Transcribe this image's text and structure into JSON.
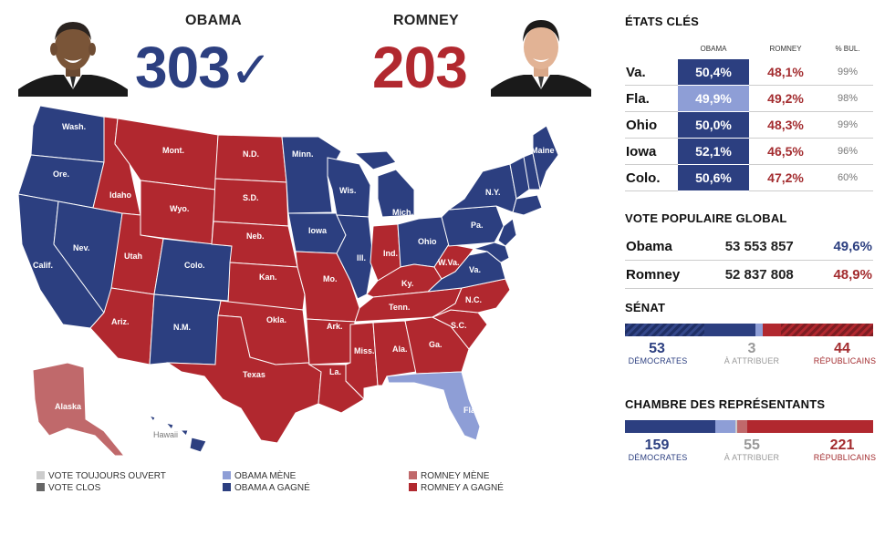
{
  "header": {
    "obama": {
      "name": "OBAMA",
      "votes": "303",
      "check": "✓",
      "color": "#2c3f80"
    },
    "romney": {
      "name": "ROMNEY",
      "votes": "203",
      "color": "#b1282f"
    }
  },
  "map": {
    "colors": {
      "obama_won": "#2c3f80",
      "obama_leads": "#8e9ed6",
      "romney_won": "#b1282f",
      "romney_leads": "#c0696b",
      "open": "#cccccc",
      "closed": "#666666"
    },
    "labels": [
      "Wash.",
      "Ore.",
      "Calif.",
      "Nev.",
      "Idaho",
      "Mont.",
      "Wyo.",
      "Utah",
      "Ariz.",
      "Colo.",
      "N.M.",
      "N.D.",
      "S.D.",
      "Neb.",
      "Kan.",
      "Okla.",
      "Texas",
      "Minn.",
      "Iowa",
      "Mo.",
      "Ark.",
      "La.",
      "Wis.",
      "Ill.",
      "Mich.",
      "Ind.",
      "Ohio",
      "Ky.",
      "Tenn.",
      "Miss.",
      "Ala.",
      "Ga.",
      "Fla.",
      "S.C.",
      "N.C.",
      "Va.",
      "W.Va.",
      "Pa.",
      "N.Y.",
      "Maine",
      "Alaska",
      "Hawaii"
    ]
  },
  "legend": {
    "open": "VOTE TOUJOURS OUVERT",
    "closed": "VOTE CLOS",
    "obama_leads": "OBAMA MÈNE",
    "obama_won": "OBAMA A GAGNÉ",
    "romney_leads": "ROMNEY MÈNE",
    "romney_won": "ROMNEY A GAGNÉ"
  },
  "key_states": {
    "title": "ÉTATS CLÉS",
    "headers": [
      "OBAMA",
      "ROMNEY",
      "% BUL."
    ],
    "rows": [
      {
        "state": "Va.",
        "obama": "50,4%",
        "romney": "48,1%",
        "pct": "99%"
      },
      {
        "state": "Fla.",
        "obama": "49,9%",
        "romney": "49,2%",
        "pct": "98%"
      },
      {
        "state": "Ohio",
        "obama": "50,0%",
        "romney": "48,3%",
        "pct": "99%"
      },
      {
        "state": "Iowa",
        "obama": "52,1%",
        "romney": "46,5%",
        "pct": "96%"
      },
      {
        "state": "Colo.",
        "obama": "50,6%",
        "romney": "47,2%",
        "pct": "60%"
      }
    ]
  },
  "popular_vote": {
    "title": "VOTE POPULAIRE GLOBAL",
    "rows": [
      {
        "name": "Obama",
        "votes": "53 553 857",
        "pct": "49,6%"
      },
      {
        "name": "Romney",
        "votes": "52 837 808",
        "pct": "48,9%"
      }
    ]
  },
  "senate": {
    "title": "SÉNAT",
    "dem": "53",
    "dem_label": "DÉMOCRATES",
    "undecided": "3",
    "undecided_label": "À ATTRIBUER",
    "rep": "44",
    "rep_label": "RÉPUBLICAINS"
  },
  "house": {
    "title": "CHAMBRE DES REPRÉSENTANTS",
    "dem": "159",
    "dem_label": "DÉMOCRATES",
    "undecided": "55",
    "undecided_label": "À ATTRIBUER",
    "rep": "221",
    "rep_label": "RÉPUBLICAINS"
  }
}
